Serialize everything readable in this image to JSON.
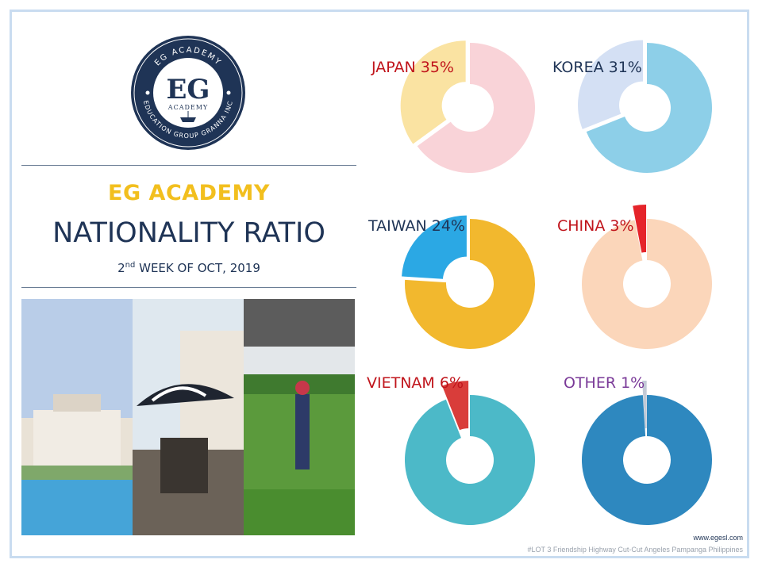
{
  "logo": {
    "top_arc": "EG ACADEMY",
    "big": "EG",
    "small": "ACADEMY",
    "bottom_arc": "EDUCATION GROUP GRANNA INC"
  },
  "header": {
    "title_brand": "EG ACADEMY",
    "title_main": "NATIONALITY RATIO",
    "subtitle_prefix": "2",
    "subtitle_sup": "nd",
    "subtitle_rest": " WEEK OF OCT, 2019"
  },
  "footer": {
    "url": "www.egesl.com",
    "address": "#LOT 3 Friendship Highway Cut-Cut Angeles Pampanga Philippines"
  },
  "colors": {
    "navy": "#1f3456",
    "gold": "#f2bf1e",
    "frame": "#c9dcf0"
  },
  "chart_data": {
    "type": "pie",
    "title": "NATIONALITY RATIO",
    "categories": [
      "JAPAN",
      "KOREA",
      "TAIWAN",
      "CHINA",
      "VIETNAM",
      "OTHER"
    ],
    "values": [
      35,
      31,
      24,
      3,
      6,
      1
    ],
    "unit": "%",
    "items": [
      {
        "name": "JAPAN",
        "value": 35,
        "label": "JAPAN 35%",
        "label_color": "#c0141b",
        "slice_color": "#fae3a2",
        "rest_color": "#f9d3d8"
      },
      {
        "name": "KOREA",
        "value": 31,
        "label": "KOREA 31%",
        "label_color": "#1f3456",
        "slice_color": "#d4e0f4",
        "rest_color": "#8dcfe8"
      },
      {
        "name": "TAIWAN",
        "value": 24,
        "label": "TAIWAN 24%",
        "label_color": "#1f3456",
        "slice_color": "#2ba8e4",
        "rest_color": "#f2b82e"
      },
      {
        "name": "CHINA",
        "value": 3,
        "label": "CHINA 3%",
        "label_color": "#c0141b",
        "slice_color": "#e5242a",
        "rest_color": "#fbd6ba"
      },
      {
        "name": "VIETNAM",
        "value": 6,
        "label": "VIETNAM 6%",
        "label_color": "#c0141b",
        "slice_color": "#d93d3a",
        "rest_color": "#4cb9c8"
      },
      {
        "name": "OTHER",
        "value": 1,
        "label": "OTHER 1%",
        "label_color": "#7a3a98",
        "slice_color": "#c2cad6",
        "rest_color": "#2e88bf"
      }
    ]
  }
}
